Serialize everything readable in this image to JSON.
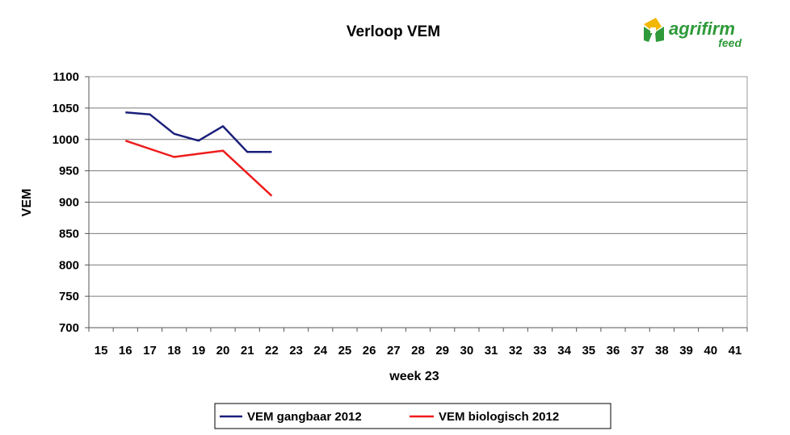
{
  "chart_data": {
    "type": "line",
    "title": "Verloop VEM",
    "xlabel": "week 23",
    "ylabel": "VEM",
    "x_ticks": [
      "15",
      "16",
      "17",
      "18",
      "19",
      "20",
      "21",
      "22",
      "23",
      "24",
      "25",
      "26",
      "27",
      "28",
      "29",
      "30",
      "31",
      "32",
      "33",
      "34",
      "35",
      "36",
      "37",
      "38",
      "39",
      "40",
      "41"
    ],
    "y_ticks": [
      "700",
      "750",
      "800",
      "850",
      "900",
      "950",
      "1000",
      "1050",
      "1100"
    ],
    "ylim": [
      700,
      1100
    ],
    "xlim": [
      15,
      41
    ],
    "grid": true,
    "legend_position": "bottom",
    "series": [
      {
        "name": "VEM gangbaar 2012",
        "color": "#1a1f7a",
        "x": [
          16,
          17,
          18,
          19,
          20,
          21,
          22
        ],
        "y": [
          1043,
          1040,
          1009,
          998,
          1021,
          980,
          980
        ]
      },
      {
        "name": "VEM biologisch 2012",
        "color": "#ee1c1c",
        "x": [
          16,
          18,
          20,
          22
        ],
        "y": [
          998,
          972,
          982,
          910
        ]
      }
    ]
  },
  "logo": {
    "name": "agrifirm",
    "sub": "feed",
    "color": "#2e9a3a",
    "accent": "#f2b705"
  }
}
